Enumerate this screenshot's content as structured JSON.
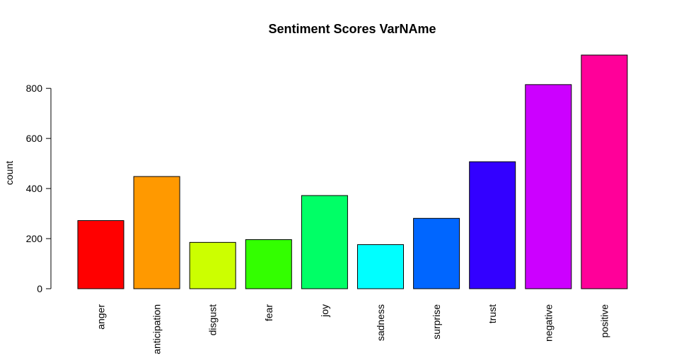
{
  "chart_data": {
    "type": "bar",
    "title": "Sentiment Scores VarNAme",
    "xlabel": "",
    "ylabel": "count",
    "categories": [
      "anger",
      "anticipation",
      "disgust",
      "fear",
      "joy",
      "sadness",
      "surprise",
      "trust",
      "negative",
      "positive"
    ],
    "values": [
      272,
      448,
      185,
      196,
      372,
      176,
      281,
      507,
      815,
      933
    ],
    "colors": [
      "#FF0000",
      "#FF9900",
      "#CCFF00",
      "#33FF00",
      "#00FF66",
      "#00FFFF",
      "#0066FF",
      "#3300FF",
      "#CC00FF",
      "#FF0099"
    ],
    "yticks": [
      0,
      200,
      400,
      600,
      800
    ],
    "ylim": [
      0,
      933
    ],
    "grid": false,
    "legend": "none"
  }
}
